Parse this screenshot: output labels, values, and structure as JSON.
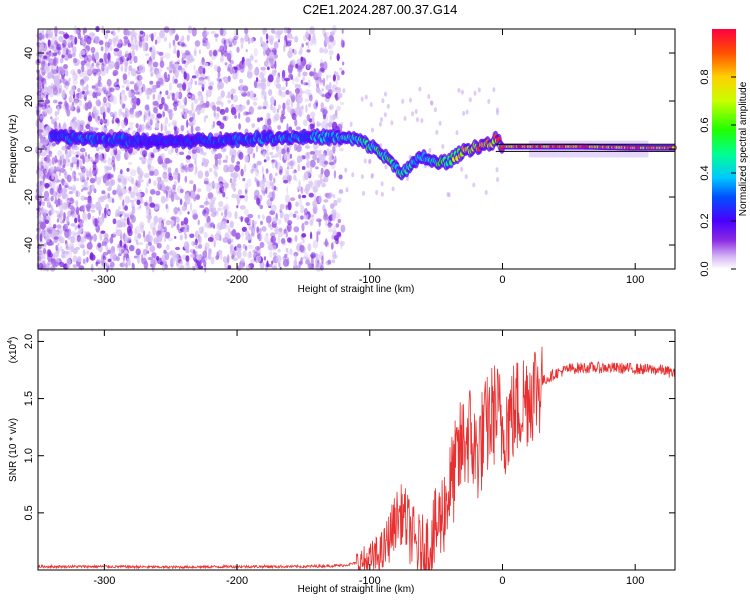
{
  "title": "C2E1.2024.287.00.37.G14",
  "chart_data": [
    {
      "type": "heatmap",
      "xlabel": "Height of straight line (km)",
      "ylabel": "Frequency (Hz)",
      "xlim": [
        -350,
        130
      ],
      "ylim": [
        -50,
        50
      ],
      "xticks": [
        -300,
        -200,
        -100,
        0,
        100
      ],
      "xtick_labels": [
        "-300",
        "-200",
        "-100",
        "0",
        "100"
      ],
      "yticks": [
        -40,
        -20,
        0,
        20,
        40
      ],
      "ytick_labels": [
        "-40",
        "-20",
        "0",
        "20",
        "40"
      ],
      "colorbar": {
        "label": "Normalized spectral amplitude",
        "range": [
          0,
          1
        ],
        "ticks": [
          0.0,
          0.2,
          0.4,
          0.6,
          0.8
        ],
        "tick_labels": [
          "0.0",
          "0.2",
          "0.4",
          "0.6",
          "0.8"
        ],
        "colormap": "rainbow"
      },
      "ridge": {
        "x": [
          -340,
          -300,
          -250,
          -200,
          -160,
          -130,
          -110,
          -95,
          -85,
          -75,
          -60,
          -50,
          -40,
          -30,
          -20,
          -10,
          -5,
          0,
          20,
          60,
          100,
          130
        ],
        "y": [
          5,
          4,
          3,
          4,
          5,
          5,
          4,
          0,
          -5,
          -10,
          -3,
          -6,
          -5,
          -1,
          1,
          2,
          4,
          1,
          1,
          1,
          0.5,
          0.5
        ],
        "amplitude": [
          0.3,
          0.3,
          0.25,
          0.3,
          0.35,
          0.35,
          0.45,
          0.5,
          0.5,
          0.45,
          0.4,
          0.5,
          0.55,
          0.7,
          0.8,
          0.85,
          0.8,
          0.9,
          0.9,
          0.85,
          0.85,
          0.85
        ]
      }
    },
    {
      "type": "line",
      "xlabel": "Height of straight line (km)",
      "ylabel": "SNR (10 * v/v)",
      "y_multiplier_label": "(x10",
      "y_multiplier_exp": "4",
      "y_multiplier_close": ")",
      "xlim": [
        -350,
        130
      ],
      "ylim": [
        0,
        2.1
      ],
      "xticks": [
        -300,
        -200,
        -100,
        0,
        100
      ],
      "xtick_labels": [
        "-300",
        "-200",
        "-100",
        "0",
        "100"
      ],
      "yticks": [
        0.5,
        1.0,
        1.5,
        2.0
      ],
      "ytick_labels": [
        "0.5",
        "1.0",
        "1.5",
        "2.0"
      ],
      "color": "#e83030",
      "series": [
        {
          "x": [
            -350,
            -300,
            -250,
            -200,
            -150,
            -120,
            -100,
            -90,
            -85,
            -80,
            -75,
            -70,
            -65,
            -60,
            -55,
            -50,
            -45,
            -40,
            -35,
            -30,
            -25,
            -20,
            -15,
            -10,
            -5,
            0,
            10,
            20,
            30,
            40,
            50,
            60,
            80,
            100,
            120,
            130
          ],
          "y": [
            0.03,
            0.03,
            0.025,
            0.03,
            0.03,
            0.04,
            0.08,
            0.15,
            0.3,
            0.45,
            0.5,
            0.35,
            0.2,
            0.15,
            0.2,
            0.35,
            0.5,
            0.7,
            0.9,
            1.1,
            1.2,
            1.0,
            1.15,
            1.3,
            1.4,
            1.25,
            1.4,
            1.55,
            1.65,
            1.72,
            1.76,
            1.77,
            1.77,
            1.76,
            1.75,
            1.72
          ]
        }
      ]
    }
  ]
}
